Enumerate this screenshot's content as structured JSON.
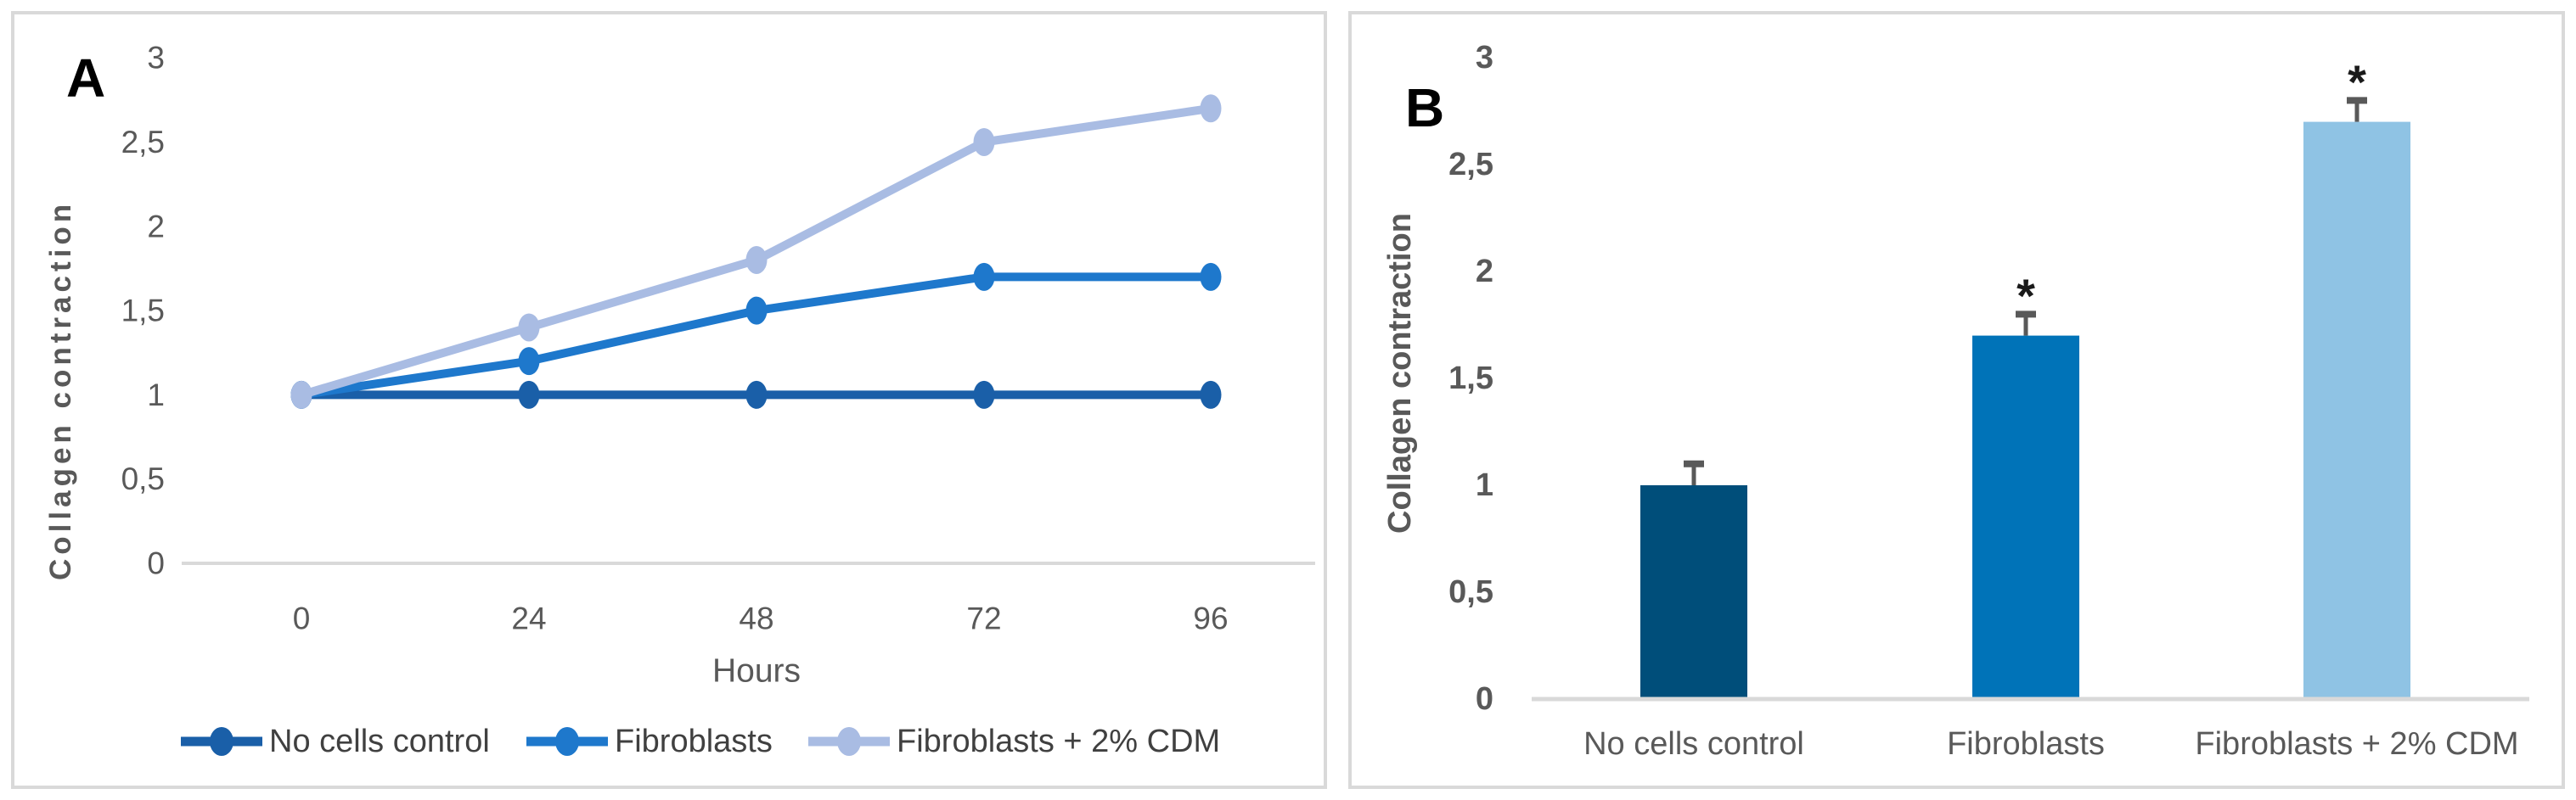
{
  "figure": {
    "description": "Two-panel collagen contraction figure",
    "background": "#ffffff",
    "panel_border_color": "#D9D9D9",
    "axis_line_color": "#D9D9D9",
    "tick_text_color": "#595959",
    "legend_text_color": "#404040",
    "annotation_color": "#1a1a1a"
  },
  "panels": [
    {
      "label": "A"
    },
    {
      "label": "B"
    }
  ],
  "chart_data": [
    {
      "type": "line",
      "panel": "A",
      "title": "",
      "xlabel": "Hours",
      "ylabel": "Collagen contraction",
      "x": [
        0,
        24,
        48,
        72,
        96
      ],
      "x_tick_labels": [
        "0",
        "24",
        "48",
        "72",
        "96"
      ],
      "ylim": [
        0,
        3
      ],
      "yticks": [
        0,
        0.5,
        1,
        1.5,
        2,
        2.5,
        3
      ],
      "y_tick_labels": [
        "0",
        "0,5",
        "1",
        "1,5",
        "2",
        "2,5",
        "3"
      ],
      "grid": false,
      "legend_position": "bottom",
      "series": [
        {
          "name": "No cells control",
          "values": [
            1,
            1,
            1,
            1,
            1
          ],
          "color": "#1A5FA8"
        },
        {
          "name": "Fibroblasts",
          "values": [
            1,
            1.2,
            1.5,
            1.7,
            1.7
          ],
          "color": "#1E78CC"
        },
        {
          "name": "Fibroblasts + 2% CDM",
          "values": [
            1,
            1.4,
            1.8,
            2.5,
            2.7
          ],
          "color": "#A9BCE3"
        }
      ]
    },
    {
      "type": "bar",
      "panel": "B",
      "title": "",
      "xlabel": "",
      "ylabel": "Collagen contraction",
      "categories": [
        "No cells control",
        "Fibroblasts",
        "Fibroblasts + 2% CDM"
      ],
      "values": [
        1.0,
        1.7,
        2.7
      ],
      "errors": [
        0.1,
        0.1,
        0.1
      ],
      "significance": [
        "",
        "*",
        "*"
      ],
      "colors": [
        "#004E7A",
        "#0073B8",
        "#8FC3E4"
      ],
      "error_bar_color": "#595959",
      "ylim": [
        0,
        3
      ],
      "yticks": [
        0,
        0.5,
        1,
        1.5,
        2,
        2.5,
        3
      ],
      "y_tick_labels": [
        "0",
        "0,5",
        "1",
        "1,5",
        "2",
        "2,5",
        "3"
      ],
      "grid": false,
      "legend_position": "none"
    }
  ]
}
